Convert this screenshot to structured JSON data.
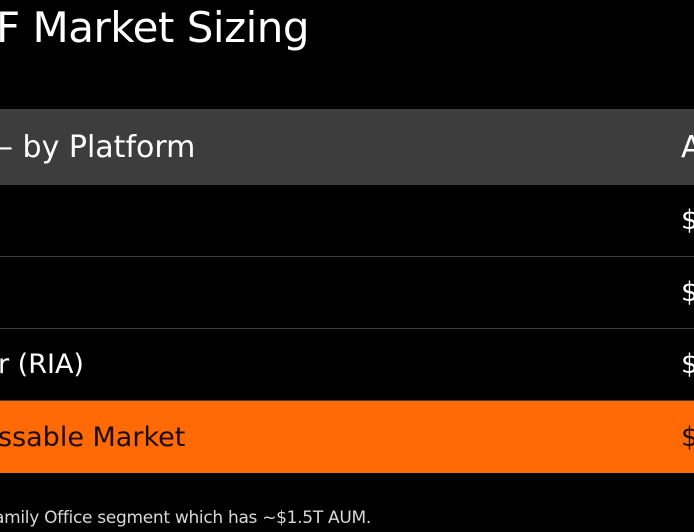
{
  "slide": {
    "title": "F Market Sizing"
  },
  "table": {
    "header": {
      "left": "– by Platform",
      "right": "A"
    },
    "rows": [
      {
        "left": "",
        "right": "$"
      },
      {
        "left": "",
        "right": "$"
      },
      {
        "left": "r (RIA)",
        "right": "$"
      }
    ],
    "total": {
      "left": "ssable Market",
      "right": "$"
    }
  },
  "footnote": "amily Office segment which has ~$1.5T AUM.",
  "colors": {
    "background": "#000000",
    "header_band": "#3d3d3d",
    "highlight": "#ff6a07",
    "divider": "#3c3c3c"
  }
}
